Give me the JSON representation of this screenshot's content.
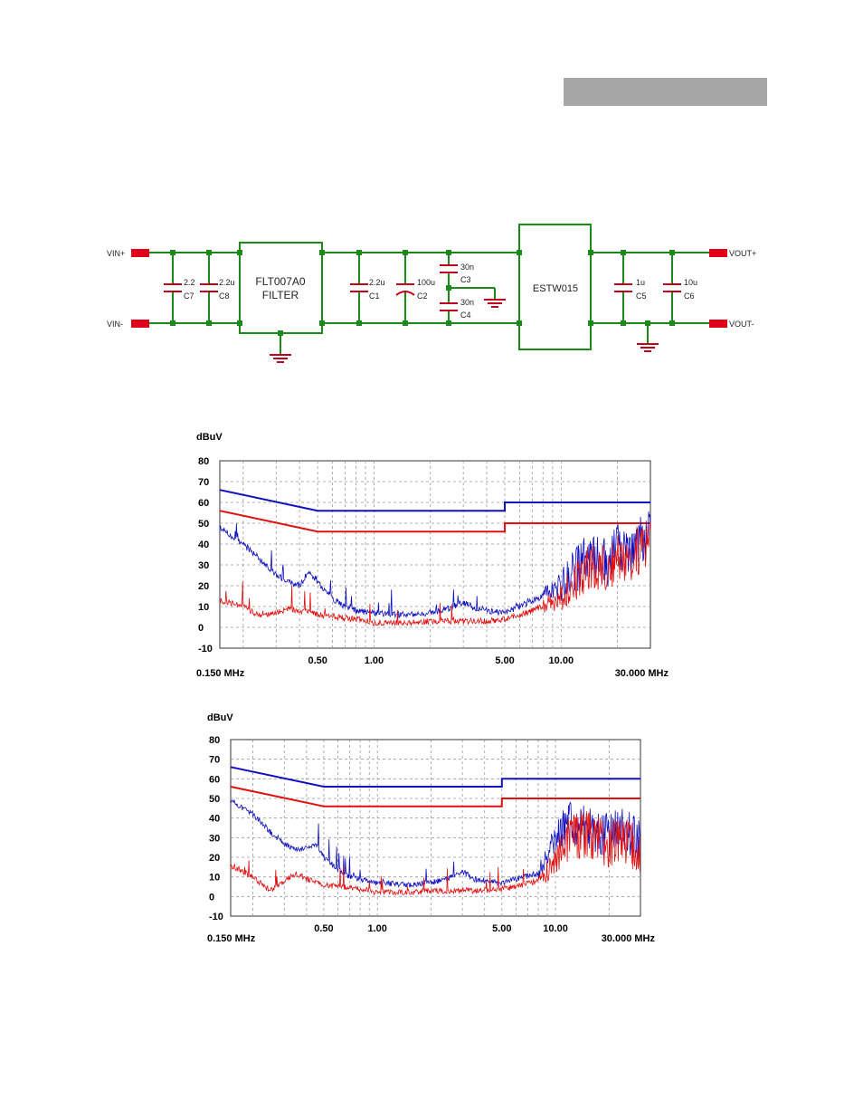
{
  "header": {
    "bar_color": "#a6a6a6"
  },
  "schematic": {
    "vin_plus": "VIN+",
    "vin_minus": "VIN-",
    "vout_plus": "VOUT+",
    "vout_minus": "VOUT-",
    "filter_name": "FLT007A0",
    "filter_label": "FILTER",
    "module": "ESTW015",
    "c7": {
      "value": "2.2",
      "ref": "C7"
    },
    "c8": {
      "value": "2.2u",
      "ref": "C8"
    },
    "c1": {
      "value": "2.2u",
      "ref": "C1"
    },
    "c2": {
      "value": "100u",
      "ref": "C2"
    },
    "c3": {
      "value": "30n",
      "ref": "C3"
    },
    "c4": {
      "value": "30n",
      "ref": "C4"
    },
    "c5": {
      "value": "1u",
      "ref": "C5"
    },
    "c6": {
      "value": "10u",
      "ref": "C6"
    },
    "wire_color": "#1a8a1a",
    "terminal_color": "#e0001a"
  },
  "chart_data": [
    {
      "type": "line",
      "ylabel": "dBuV",
      "x_start_label": "0.150 MHz",
      "x_end_label": "30.000 MHz",
      "x_range_mhz": [
        0.15,
        30
      ],
      "ylim": [
        -10,
        80
      ],
      "yticks": [
        "80",
        "70",
        "60",
        "50",
        "40",
        "30",
        "20",
        "10",
        "0",
        "-10"
      ],
      "xticks": [
        {
          "v": 0.5,
          "label": "0.50"
        },
        {
          "v": 1,
          "label": "1.00"
        },
        {
          "v": 5,
          "label": "5.00"
        },
        {
          "v": 10,
          "label": "10.00"
        }
      ],
      "series": [
        {
          "name": "Quasi-peak limit",
          "color": "#1010c0",
          "points": [
            [
              0.15,
              66
            ],
            [
              0.5,
              56
            ],
            [
              5,
              56
            ],
            [
              5,
              60
            ],
            [
              30,
              60
            ]
          ]
        },
        {
          "name": "Average limit",
          "color": "#e01010",
          "points": [
            [
              0.15,
              56
            ],
            [
              0.5,
              46
            ],
            [
              5,
              46
            ],
            [
              5,
              50
            ],
            [
              30,
              50
            ]
          ]
        },
        {
          "name": "Peak scan",
          "color": "#1010c0",
          "points": [
            [
              0.15,
              48
            ],
            [
              0.2,
              40
            ],
            [
              0.25,
              32
            ],
            [
              0.3,
              25
            ],
            [
              0.35,
              22
            ],
            [
              0.4,
              20
            ],
            [
              0.45,
              27
            ],
            [
              0.5,
              22
            ],
            [
              0.6,
              14
            ],
            [
              0.7,
              10
            ],
            [
              0.8,
              8
            ],
            [
              1.0,
              7
            ],
            [
              1.5,
              6
            ],
            [
              2,
              7
            ],
            [
              2.5,
              9
            ],
            [
              3,
              12
            ],
            [
              3.5,
              9
            ],
            [
              4,
              8
            ],
            [
              5,
              7
            ],
            [
              6,
              10
            ],
            [
              8,
              15
            ],
            [
              10,
              20
            ],
            [
              12,
              28
            ],
            [
              15,
              35
            ],
            [
              18,
              30
            ],
            [
              20,
              38
            ],
            [
              22,
              35
            ],
            [
              25,
              40
            ],
            [
              28,
              42
            ],
            [
              30,
              45
            ]
          ]
        },
        {
          "name": "Average scan",
          "color": "#e01010",
          "points": [
            [
              0.15,
              13
            ],
            [
              0.2,
              10
            ],
            [
              0.25,
              5
            ],
            [
              0.3,
              7
            ],
            [
              0.35,
              9
            ],
            [
              0.4,
              8
            ],
            [
              0.5,
              6
            ],
            [
              0.6,
              5
            ],
            [
              0.8,
              4
            ],
            [
              1.0,
              2
            ],
            [
              1.5,
              2
            ],
            [
              2,
              3
            ],
            [
              3,
              3
            ],
            [
              4,
              3
            ],
            [
              5,
              4
            ],
            [
              6,
              6
            ],
            [
              8,
              10
            ],
            [
              10,
              15
            ],
            [
              12,
              22
            ],
            [
              15,
              30
            ],
            [
              18,
              28
            ],
            [
              20,
              35
            ],
            [
              22,
              32
            ],
            [
              25,
              36
            ],
            [
              28,
              40
            ],
            [
              30,
              42
            ]
          ]
        }
      ]
    },
    {
      "type": "line",
      "ylabel": "dBuV",
      "x_start_label": "0.150 MHz",
      "x_end_label": "30.000 MHz",
      "x_range_mhz": [
        0.15,
        30
      ],
      "ylim": [
        -10,
        80
      ],
      "yticks": [
        "80",
        "70",
        "60",
        "50",
        "40",
        "30",
        "20",
        "10",
        "0",
        "-10"
      ],
      "xticks": [
        {
          "v": 0.5,
          "label": "0.50"
        },
        {
          "v": 1,
          "label": "1.00"
        },
        {
          "v": 5,
          "label": "5.00"
        },
        {
          "v": 10,
          "label": "10.00"
        }
      ],
      "series": [
        {
          "name": "Quasi-peak limit",
          "color": "#1010c0",
          "points": [
            [
              0.15,
              66
            ],
            [
              0.5,
              56
            ],
            [
              5,
              56
            ],
            [
              5,
              60
            ],
            [
              30,
              60
            ]
          ]
        },
        {
          "name": "Average limit",
          "color": "#e01010",
          "points": [
            [
              0.15,
              56
            ],
            [
              0.5,
              46
            ],
            [
              5,
              46
            ],
            [
              5,
              50
            ],
            [
              30,
              50
            ]
          ]
        },
        {
          "name": "Peak scan",
          "color": "#1010c0",
          "points": [
            [
              0.15,
              49
            ],
            [
              0.2,
              42
            ],
            [
              0.25,
              33
            ],
            [
              0.3,
              27
            ],
            [
              0.35,
              24
            ],
            [
              0.4,
              25
            ],
            [
              0.45,
              27
            ],
            [
              0.5,
              20
            ],
            [
              0.6,
              14
            ],
            [
              0.7,
              10
            ],
            [
              0.8,
              9
            ],
            [
              1.0,
              7
            ],
            [
              1.5,
              6
            ],
            [
              2,
              7
            ],
            [
              2.5,
              9
            ],
            [
              3,
              13
            ],
            [
              3.5,
              9
            ],
            [
              4,
              8
            ],
            [
              5,
              7
            ],
            [
              6,
              9
            ],
            [
              8,
              12
            ],
            [
              10,
              30
            ],
            [
              12,
              38
            ],
            [
              15,
              36
            ],
            [
              18,
              33
            ],
            [
              20,
              30
            ],
            [
              22,
              34
            ],
            [
              25,
              35
            ],
            [
              28,
              30
            ],
            [
              30,
              28
            ]
          ]
        },
        {
          "name": "Average scan",
          "color": "#e01010",
          "points": [
            [
              0.15,
              16
            ],
            [
              0.2,
              10
            ],
            [
              0.25,
              3
            ],
            [
              0.3,
              8
            ],
            [
              0.35,
              12
            ],
            [
              0.4,
              9
            ],
            [
              0.5,
              6
            ],
            [
              0.6,
              5
            ],
            [
              0.8,
              4
            ],
            [
              1.0,
              2
            ],
            [
              1.5,
              2
            ],
            [
              2,
              3
            ],
            [
              3,
              3
            ],
            [
              4,
              3
            ],
            [
              5,
              4
            ],
            [
              6,
              5
            ],
            [
              8,
              8
            ],
            [
              10,
              18
            ],
            [
              12,
              30
            ],
            [
              15,
              32
            ],
            [
              18,
              28
            ],
            [
              20,
              25
            ],
            [
              22,
              30
            ],
            [
              25,
              28
            ],
            [
              28,
              25
            ],
            [
              30,
              22
            ]
          ]
        }
      ]
    }
  ]
}
